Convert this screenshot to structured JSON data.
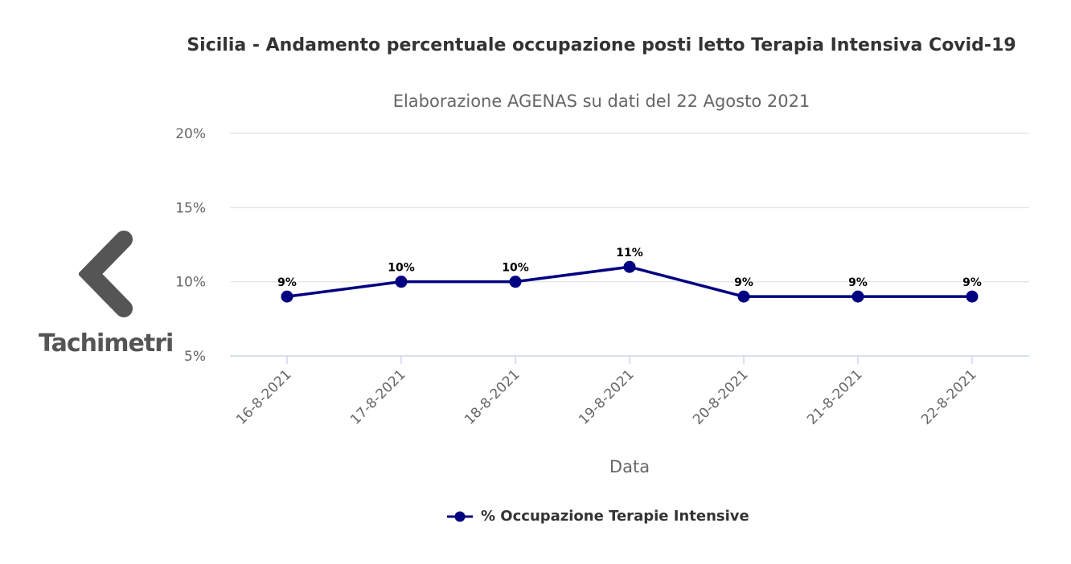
{
  "chart_data": {
    "type": "line",
    "title": "Sicilia - Andamento percentuale occupazione posti letto Terapia Intensiva Covid-19",
    "subtitle": "Elaborazione AGENAS su dati del 22 Agosto 2021",
    "xlabel": "Data",
    "ylabel": "",
    "categories": [
      "16-8-2021",
      "17-8-2021",
      "18-8-2021",
      "19-8-2021",
      "20-8-2021",
      "21-8-2021",
      "22-8-2021"
    ],
    "y_ticks": [
      "5%",
      "10%",
      "15%",
      "20%"
    ],
    "ylim": [
      5,
      20
    ],
    "grid": true,
    "legend_position": "bottom",
    "series": [
      {
        "name": "% Occupazione Terapie Intensive",
        "values": [
          9,
          10,
          10,
          11,
          9,
          9,
          9
        ],
        "labels": [
          "9%",
          "10%",
          "10%",
          "11%",
          "9%",
          "9%",
          "9%"
        ],
        "color": "#000080"
      }
    ]
  },
  "nav": {
    "back_label": "Tachimetri",
    "back_icon": "chevron-left-icon"
  },
  "colors": {
    "series": "#000080",
    "grid": "#e6e6e6",
    "axis": "#ccd6eb",
    "tick_text": "#666666",
    "nav": "#555555"
  }
}
